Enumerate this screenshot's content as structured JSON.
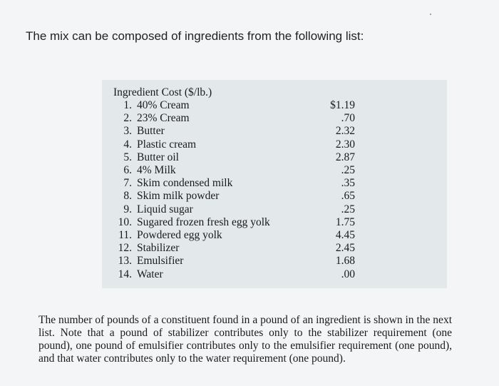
{
  "intro": "The mix can be composed of ingredients from the following list:",
  "table": {
    "header": "Ingredient Cost ($/lb.)",
    "rows": [
      {
        "num": "1.",
        "name": "40% Cream",
        "cost": "$1.19"
      },
      {
        "num": "2.",
        "name": "23% Cream",
        "cost": ".70"
      },
      {
        "num": "3.",
        "name": "Butter",
        "cost": "2.32"
      },
      {
        "num": "4.",
        "name": "Plastic cream",
        "cost": "2.30"
      },
      {
        "num": "5.",
        "name": "Butter oil",
        "cost": "2.87"
      },
      {
        "num": "6.",
        "name": "4% Milk",
        "cost": ".25"
      },
      {
        "num": "7.",
        "name": "Skim condensed milk",
        "cost": ".35"
      },
      {
        "num": "8.",
        "name": "Skim milk powder",
        "cost": ".65"
      },
      {
        "num": "9.",
        "name": "Liquid sugar",
        "cost": ".25"
      },
      {
        "num": "10.",
        "name": "Sugared frozen fresh egg yolk",
        "cost": "1.75"
      },
      {
        "num": "11.",
        "name": "Powdered egg yolk",
        "cost": "4.45"
      },
      {
        "num": "12.",
        "name": "Stabilizer",
        "cost": "2.45"
      },
      {
        "num": "13.",
        "name": "Emulsifier",
        "cost": "1.68"
      },
      {
        "num": "14.",
        "name": "Water",
        "cost": ".00"
      }
    ]
  },
  "paragraph": "The number of pounds of a constituent found in a pound of an ingredient is shown in the next list. Note that a pound of stabilizer contributes only to the stabilizer requirement (one pound), one pound of emulsifier contributes only to the emulsifier requirement (one pound), and that water contributes only to the water requirement (one pound)."
}
